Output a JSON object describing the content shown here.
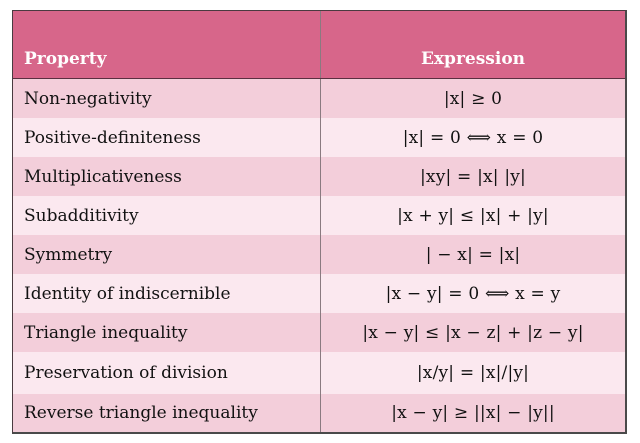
{
  "table": {
    "headers": [
      "Property",
      "Expression"
    ],
    "rows": [
      {
        "property": "Non-negativity",
        "expression": "|x| ≥ 0"
      },
      {
        "property": "Positive-definiteness",
        "expression": "|x| = 0  ⟺  x = 0"
      },
      {
        "property": "Multiplicativeness",
        "expression": "|xy| = |x| |y|"
      },
      {
        "property": "Subadditivity",
        "expression": "|x + y| ≤ |x| + |y|"
      },
      {
        "property": "Symmetry",
        "expression": "| − x| = |x|"
      },
      {
        "property": "Identity of indiscernible",
        "expression": "|x − y| = 0  ⟺  x = y"
      },
      {
        "property": "Triangle inequality",
        "expression": "|x − y| ≤ |x − z| + |z − y|"
      },
      {
        "property": "Preservation of division",
        "expression": "|x/y| = |x|/|y|"
      },
      {
        "property": "Reverse triangle inequality",
        "expression": "|x − y| ≥ ||x| − |y||"
      }
    ],
    "colors": {
      "header_bg": "#d7668a",
      "row_odd": "#f3ceda",
      "row_even": "#fbe8ef",
      "header_text": "#ffffff"
    }
  }
}
